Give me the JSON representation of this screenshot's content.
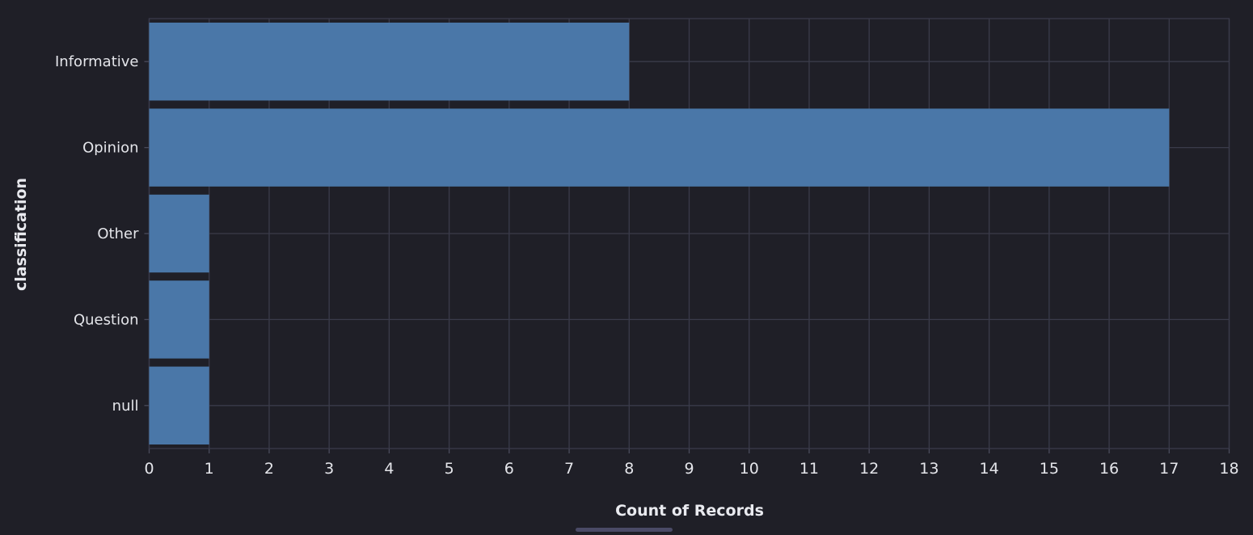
{
  "chart_data": {
    "type": "bar",
    "orientation": "horizontal",
    "categories": [
      "Informative",
      "Opinion",
      "Other",
      "Question",
      "null"
    ],
    "values": [
      8,
      17,
      1,
      1,
      1
    ],
    "xlabel": "Count of Records",
    "ylabel": "classification",
    "xlim": [
      0,
      18
    ],
    "xticks": [
      0,
      1,
      2,
      3,
      4,
      5,
      6,
      7,
      8,
      9,
      10,
      11,
      12,
      13,
      14,
      15,
      16,
      17,
      18
    ],
    "grid": true,
    "bar_color": "#4a77a8",
    "background": "#1f1f27",
    "grid_color": "#3a3b4a"
  }
}
